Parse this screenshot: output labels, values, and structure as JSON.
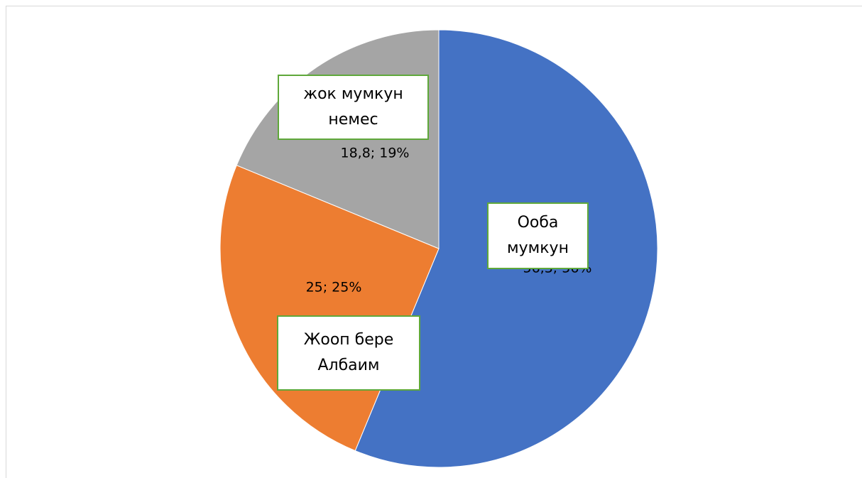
{
  "chart_data": {
    "type": "pie",
    "categories": [
      "Ооба мумкун",
      "Жооп бере Албаим",
      "жок мумкун немес"
    ],
    "values": [
      56.3,
      25,
      18.8
    ],
    "value_labels": [
      "56,3; 56%",
      "25; 25%",
      "18,8; 19%"
    ],
    "colors": [
      "#4472c4",
      "#ed7d31",
      "#a5a5a5"
    ]
  }
}
